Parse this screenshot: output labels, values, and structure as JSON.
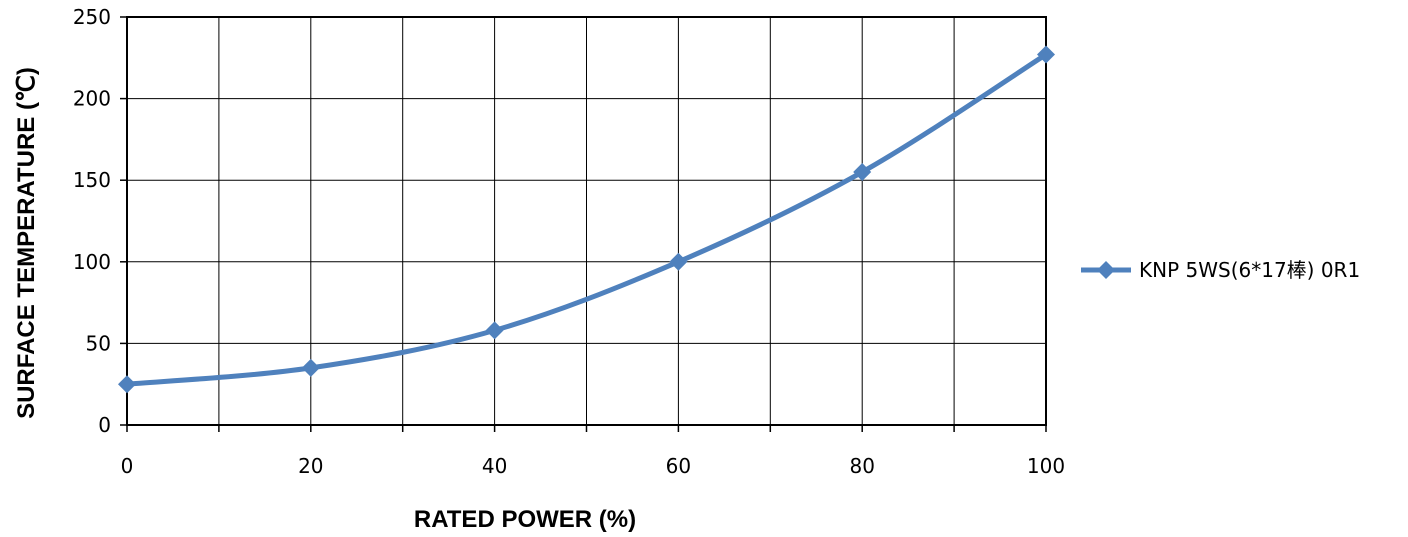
{
  "chart_data": {
    "type": "line",
    "xlabel": "RATED POWER  (%)",
    "ylabel": "SURFACE TEMPERATURE (℃)",
    "xlim": [
      0,
      100
    ],
    "ylim": [
      0,
      250
    ],
    "x_ticks": [
      0,
      20,
      40,
      60,
      80,
      100
    ],
    "x_gridlines": [
      0,
      10,
      20,
      30,
      40,
      50,
      60,
      70,
      80,
      90,
      100
    ],
    "y_ticks": [
      0,
      50,
      100,
      150,
      200,
      250
    ],
    "grid": true,
    "legend_position": "right",
    "series": [
      {
        "name": "KNP  5WS(6*17棒)  0R1",
        "color": "#4F81BD",
        "marker": "diamond",
        "x": [
          0,
          20,
          40,
          60,
          80,
          100
        ],
        "y": [
          25,
          35,
          58,
          100,
          155,
          227
        ]
      }
    ]
  }
}
